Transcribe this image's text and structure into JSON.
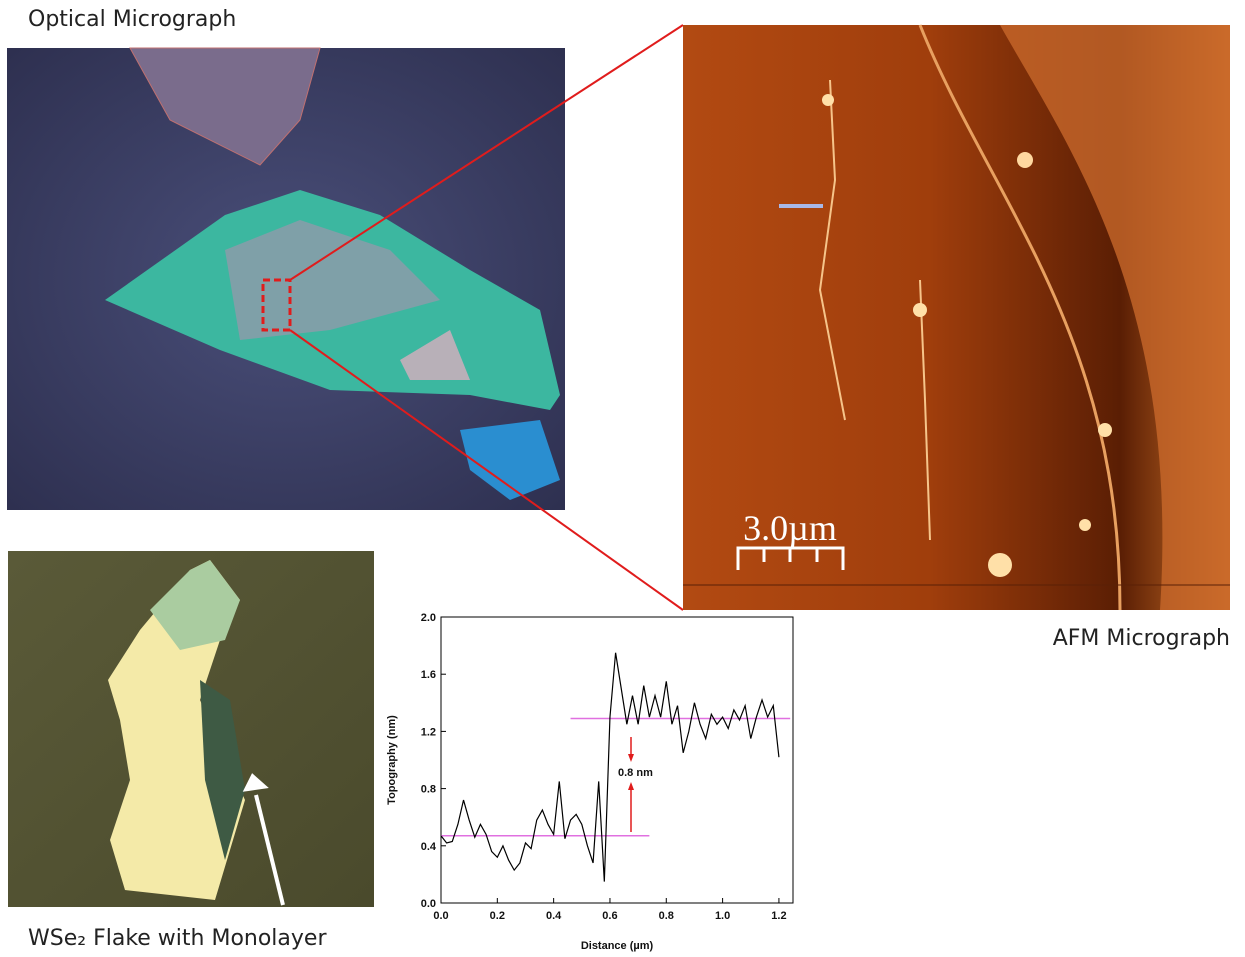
{
  "labels": {
    "optical": "Optical Micrograph",
    "afm": "AFM Micrograph",
    "flake": "WSe₂ Flake with Monolayer",
    "scale_bar": "3.0µm"
  },
  "chart_data": {
    "type": "line",
    "x_label": "Distance (µm)",
    "y_label": "Topography (nm)",
    "x": [
      0.0,
      0.02,
      0.04,
      0.06,
      0.08,
      0.1,
      0.12,
      0.14,
      0.16,
      0.18,
      0.2,
      0.22,
      0.24,
      0.26,
      0.28,
      0.3,
      0.32,
      0.34,
      0.36,
      0.38,
      0.4,
      0.42,
      0.44,
      0.46,
      0.48,
      0.5,
      0.52,
      0.54,
      0.56,
      0.58,
      0.6,
      0.62,
      0.64,
      0.66,
      0.68,
      0.7,
      0.72,
      0.74,
      0.76,
      0.78,
      0.8,
      0.82,
      0.84,
      0.86,
      0.88,
      0.9,
      0.92,
      0.94,
      0.96,
      0.98,
      1.0,
      1.02,
      1.04,
      1.06,
      1.08,
      1.1,
      1.12,
      1.14,
      1.16,
      1.18,
      1.2
    ],
    "values": [
      0.47,
      0.42,
      0.43,
      0.55,
      0.72,
      0.58,
      0.46,
      0.55,
      0.48,
      0.36,
      0.32,
      0.4,
      0.3,
      0.23,
      0.28,
      0.42,
      0.38,
      0.58,
      0.65,
      0.55,
      0.48,
      0.85,
      0.45,
      0.58,
      0.62,
      0.55,
      0.4,
      0.28,
      0.85,
      0.15,
      1.3,
      1.75,
      1.5,
      1.25,
      1.45,
      1.25,
      1.52,
      1.3,
      1.45,
      1.3,
      1.55,
      1.25,
      1.38,
      1.05,
      1.2,
      1.4,
      1.25,
      1.15,
      1.32,
      1.25,
      1.3,
      1.22,
      1.35,
      1.28,
      1.38,
      1.15,
      1.3,
      1.42,
      1.3,
      1.38,
      1.02
    ],
    "color": "#000000",
    "xlim": [
      0,
      1.25
    ],
    "ylim": [
      0,
      2.0
    ],
    "xticks": [
      {
        "value": 0,
        "label": "0.0"
      },
      0.2,
      0.4,
      0.6,
      0.8,
      {
        "value": 1,
        "label": "1.0"
      },
      1.2
    ],
    "yticks": [
      {
        "value": 0,
        "label": "0.0"
      },
      0.4,
      0.8,
      1.2,
      1.6,
      {
        "value": 2,
        "label": "2.0"
      }
    ],
    "reference_lines": [
      {
        "y": 0.47,
        "x": [
          0,
          0.74
        ]
      },
      {
        "y": 1.29,
        "x": [
          0.46,
          1.24
        ]
      }
    ],
    "reference_color": "#e070e0",
    "annotation": "0.8 nm"
  }
}
